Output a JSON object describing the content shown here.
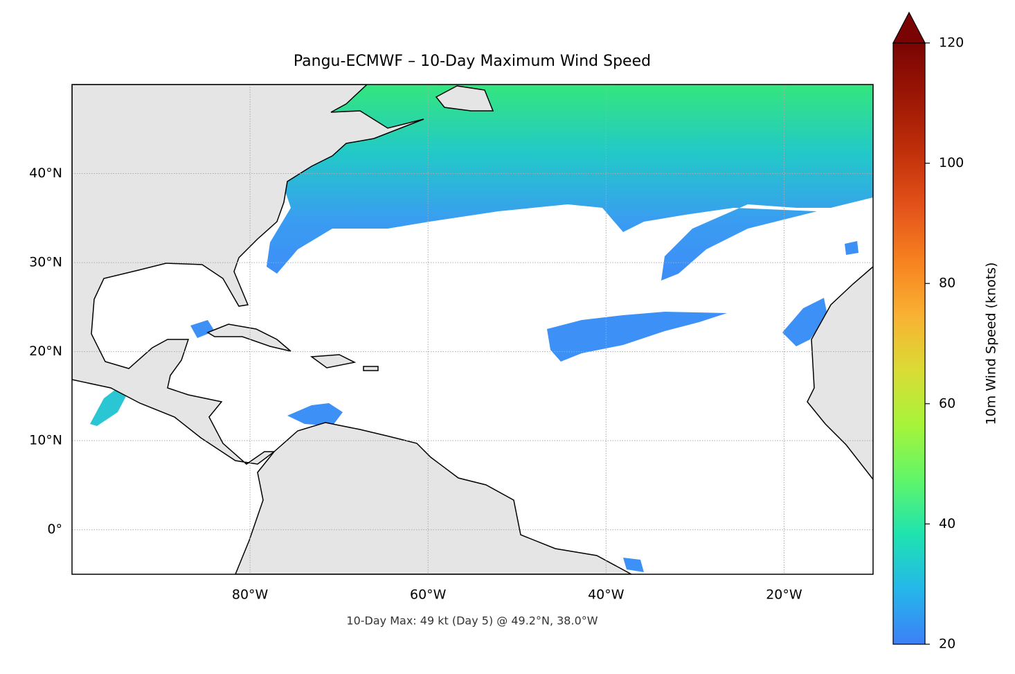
{
  "chart_data": {
    "type": "map",
    "title": "Pangu-ECMWF – 10-Day Maximum Wind Speed",
    "annotation": "10-Day Max: 49 kt (Day 5) @ 49.2°N, 38.0°W",
    "xlim": [
      -100,
      -10
    ],
    "ylim": [
      -5,
      50
    ],
    "xticks": [
      {
        "value": -80,
        "label": "80°W"
      },
      {
        "value": -60,
        "label": "60°W"
      },
      {
        "value": -40,
        "label": "40°W"
      },
      {
        "value": -20,
        "label": "20°W"
      }
    ],
    "yticks": [
      {
        "value": 0,
        "label": "0°"
      },
      {
        "value": 10,
        "label": "10°N"
      },
      {
        "value": 20,
        "label": "20°N"
      },
      {
        "value": 30,
        "label": "30°N"
      },
      {
        "value": 40,
        "label": "40°N"
      }
    ],
    "grid": true,
    "colorbar": {
      "label": "10m Wind Speed (knots)",
      "clim": [
        20,
        120
      ],
      "ticks": [
        20,
        40,
        60,
        80,
        100,
        120
      ],
      "extend": "max",
      "colormap": [
        "#3d7ff7",
        "#25b6ea",
        "#1ee3b0",
        "#5ff56a",
        "#a6f43a",
        "#d9dc34",
        "#f9b233",
        "#f7821f",
        "#e4521a",
        "#c1300a",
        "#9c1705",
        "#7a0403"
      ]
    }
  }
}
